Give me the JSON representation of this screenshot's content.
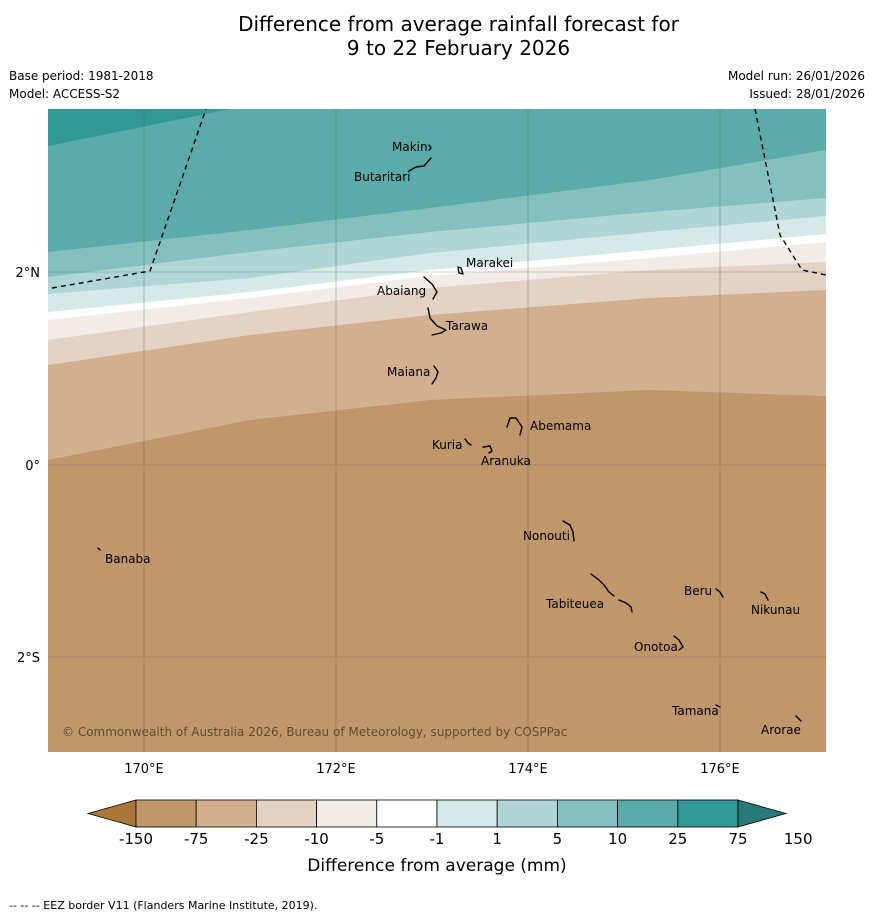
{
  "title": {
    "line1": "Difference from average rainfall forecast for",
    "line2": "9 to 22 February 2026"
  },
  "meta": {
    "base_period": "Base period: 1981-2018",
    "model": "Model: ACCESS-S2",
    "model_run": "Model run: 26/01/2026",
    "issued": "Issued: 28/01/2026"
  },
  "map": {
    "lat_labels": [
      "2°N",
      "0°",
      "2°S"
    ],
    "lon_labels": [
      "170°E",
      "172°E",
      "174°E",
      "176°E"
    ],
    "copyright": "© Commonwealth of Australia 2026, Bureau of Meteorology, supported by COSPPac",
    "places": [
      {
        "name": "Makin"
      },
      {
        "name": "Butaritari"
      },
      {
        "name": "Marakei"
      },
      {
        "name": "Abaiang"
      },
      {
        "name": "Tarawa"
      },
      {
        "name": "Maiana"
      },
      {
        "name": "Abemama"
      },
      {
        "name": "Kuria"
      },
      {
        "name": "Aranuka"
      },
      {
        "name": "Nonouti"
      },
      {
        "name": "Banaba"
      },
      {
        "name": "Beru"
      },
      {
        "name": "Nikunau"
      },
      {
        "name": "Tabiteuea"
      },
      {
        "name": "Onotoa"
      },
      {
        "name": "Tamana"
      },
      {
        "name": "Arorae"
      }
    ]
  },
  "legend": {
    "ticks": [
      "-150",
      "-75",
      "-25",
      "-10",
      "-5",
      "-1",
      "1",
      "5",
      "10",
      "25",
      "75",
      "150"
    ],
    "colors": [
      "#ab763a",
      "#c0976a",
      "#d2b08f",
      "#e4d3c4",
      "#f1ece7",
      "#ffffff",
      "#d5e9e8",
      "#afd6d5",
      "#83c0bf",
      "#5aabaa",
      "#329896",
      "#277a79"
    ],
    "label": "Difference from average (mm)"
  },
  "footer": "--  --  -- EEZ border V11 (Flanders Marine Institute, 2019)."
}
